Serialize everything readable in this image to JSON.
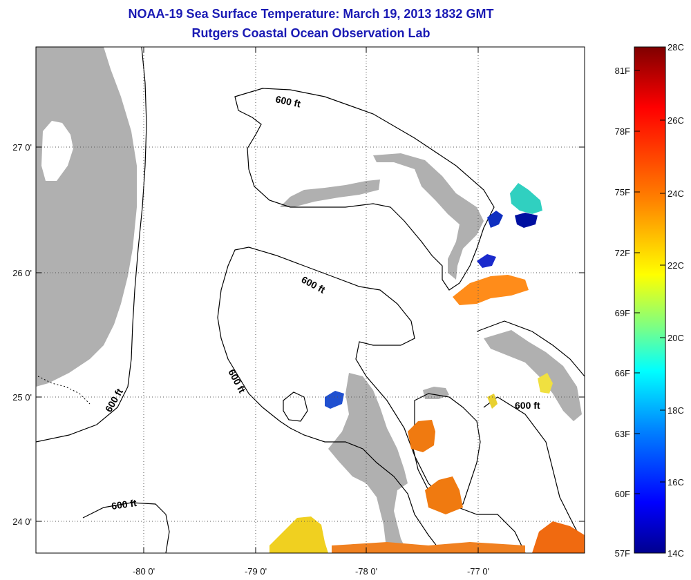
{
  "header": {
    "title_line1": "NOAA-19 Sea Surface Temperature:  March 19, 2013 1832 GMT",
    "title_line2": "Rutgers Coastal Ocean Observation Lab"
  },
  "map": {
    "lon_ticks": [
      "-80 0'",
      "-79 0'",
      "-78 0'",
      "-77 0'"
    ],
    "lat_ticks": [
      "27 0'",
      "26 0'",
      "25 0'",
      "24 0'"
    ],
    "contours": [
      "600 ft",
      "600 ft",
      "600 ft",
      "600 ft",
      "600 ft",
      "600 ft"
    ],
    "colors": {
      "land": "#b0b0b0",
      "ocean": "#ffffff",
      "contour": "#000000"
    }
  },
  "colorbar": {
    "fahrenheit": [
      "81F",
      "78F",
      "75F",
      "72F",
      "69F",
      "66F",
      "63F",
      "60F",
      "57F"
    ],
    "celsius": [
      "28C",
      "26C",
      "24C",
      "22C",
      "20C",
      "18C",
      "16C",
      "14C"
    ],
    "stops": [
      "#7f0000",
      "#ff0000",
      "#ff8000",
      "#ffff00",
      "#80ff80",
      "#00ffff",
      "#0080ff",
      "#0000ff",
      "#00008f"
    ]
  }
}
